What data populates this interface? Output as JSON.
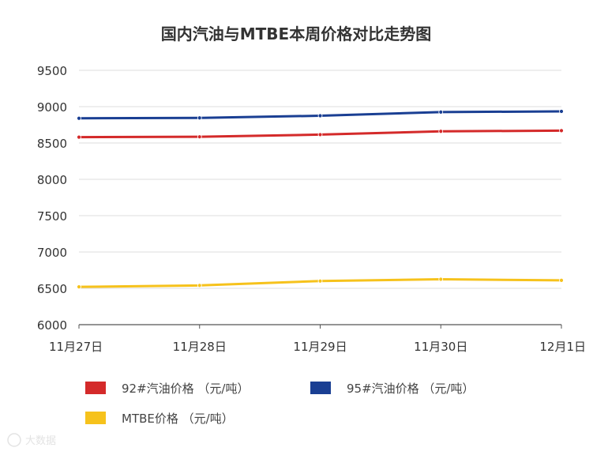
{
  "chart_data": {
    "type": "line",
    "title": "国内汽油与MTBE本周价格对比走势图",
    "categories": [
      "11月27日",
      "11月28日",
      "11月29日",
      "11月30日",
      "12月1日"
    ],
    "ylim": [
      6000,
      9500
    ],
    "yticks": [
      6000,
      6500,
      7000,
      7500,
      8000,
      8500,
      9000,
      9500
    ],
    "grid": true,
    "legend_position": "bottom",
    "series": [
      {
        "name": "92#汽油价格 （元/吨）",
        "color": "#d42a2a",
        "values": [
          8580,
          8585,
          8615,
          8660,
          8670
        ]
      },
      {
        "name": "95#汽油价格 （元/吨）",
        "color": "#1a3f93",
        "values": [
          8840,
          8845,
          8875,
          8925,
          8935
        ]
      },
      {
        "name": "MTBE价格 （元/吨）",
        "color": "#f6c21c",
        "values": [
          6520,
          6540,
          6600,
          6625,
          6610
        ]
      }
    ]
  },
  "watermark": {
    "text": "大数据"
  }
}
